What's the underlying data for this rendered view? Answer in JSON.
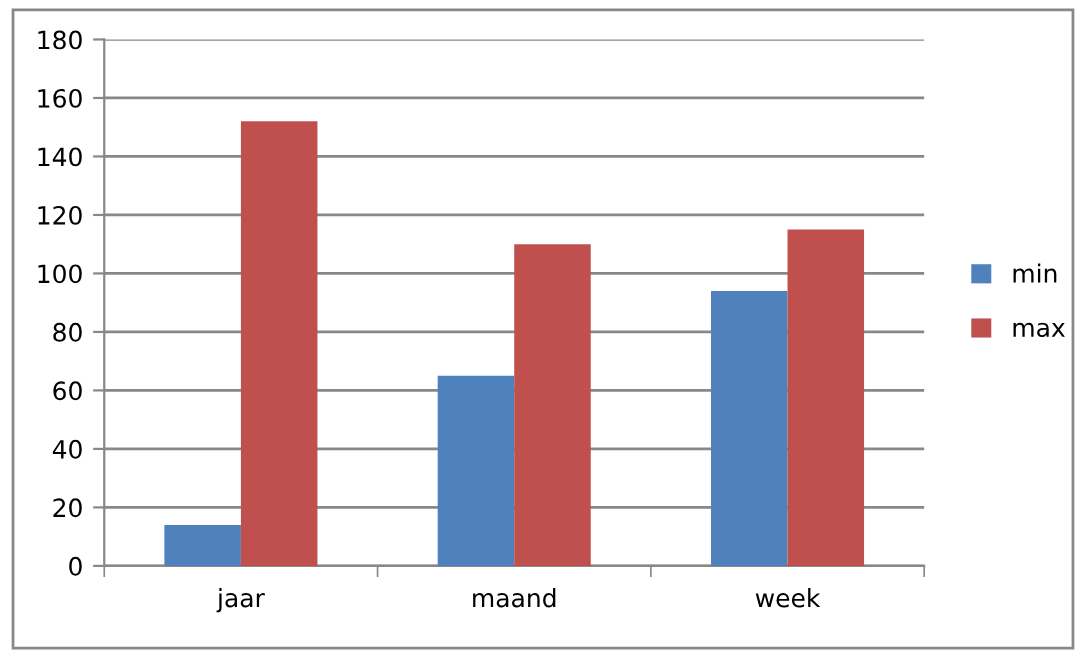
{
  "chart_data": {
    "type": "bar",
    "categories": [
      "jaar",
      "maand",
      "week"
    ],
    "series": [
      {
        "name": "min",
        "color": "#4f81bd",
        "values": [
          14,
          65,
          94
        ]
      },
      {
        "name": "max",
        "color": "#c0504d",
        "values": [
          152,
          110,
          115
        ]
      }
    ],
    "ylim": [
      0,
      180
    ],
    "yticks": [
      0,
      20,
      40,
      60,
      80,
      100,
      120,
      140,
      160,
      180
    ],
    "grid": "y",
    "legend": "right"
  }
}
